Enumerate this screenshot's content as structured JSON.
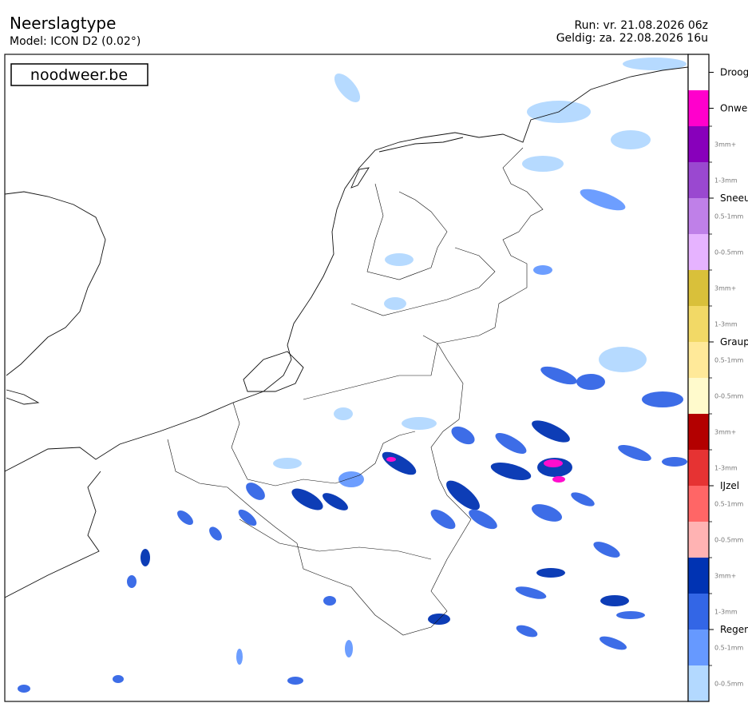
{
  "header": {
    "title": "Neerslagtype",
    "model": "Model: ICON D2 (0.02°)",
    "run": "Run: vr. 21.08.2026 06z",
    "valid": "Geldig: za. 22.08.2026 16u"
  },
  "watermark": "noodweer.be",
  "legend": [
    {
      "label": "Droog",
      "color": "#ffffff"
    },
    {
      "label": "Onwe",
      "color": "#ff00cc"
    },
    {
      "label": "Sneeu",
      "levels": [
        {
          "label": "3mm+",
          "color": "#8800bb"
        },
        {
          "label": "1-3mm",
          "color": "#9a48d0"
        },
        {
          "label": "0.5-1mm",
          "color": "#bf80e8"
        },
        {
          "label": "0-0.5mm",
          "color": "#e6b3ff"
        }
      ]
    },
    {
      "label": "Graup",
      "levels": [
        {
          "label": "3mm+",
          "color": "#d9c03a"
        },
        {
          "label": "1-3mm",
          "color": "#f2d966"
        },
        {
          "label": "0.5-1mm",
          "color": "#ffe999"
        },
        {
          "label": "0-0.5mm",
          "color": "#fffacc"
        }
      ]
    },
    {
      "label": "IJzel",
      "levels": [
        {
          "label": "3mm+",
          "color": "#b30000"
        },
        {
          "label": "1-3mm",
          "color": "#e63333"
        },
        {
          "label": "0.5-1mm",
          "color": "#ff6666"
        },
        {
          "label": "0-0.5mm",
          "color": "#ffb3b3"
        }
      ]
    },
    {
      "label": "Regen",
      "levels": [
        {
          "label": "3mm+",
          "color": "#0033b3"
        },
        {
          "label": "1-3mm",
          "color": "#3366e6"
        },
        {
          "label": "0.5-1mm",
          "color": "#6699ff"
        },
        {
          "label": "0-0.5mm",
          "color": "#b3d9ff"
        }
      ]
    }
  ]
}
